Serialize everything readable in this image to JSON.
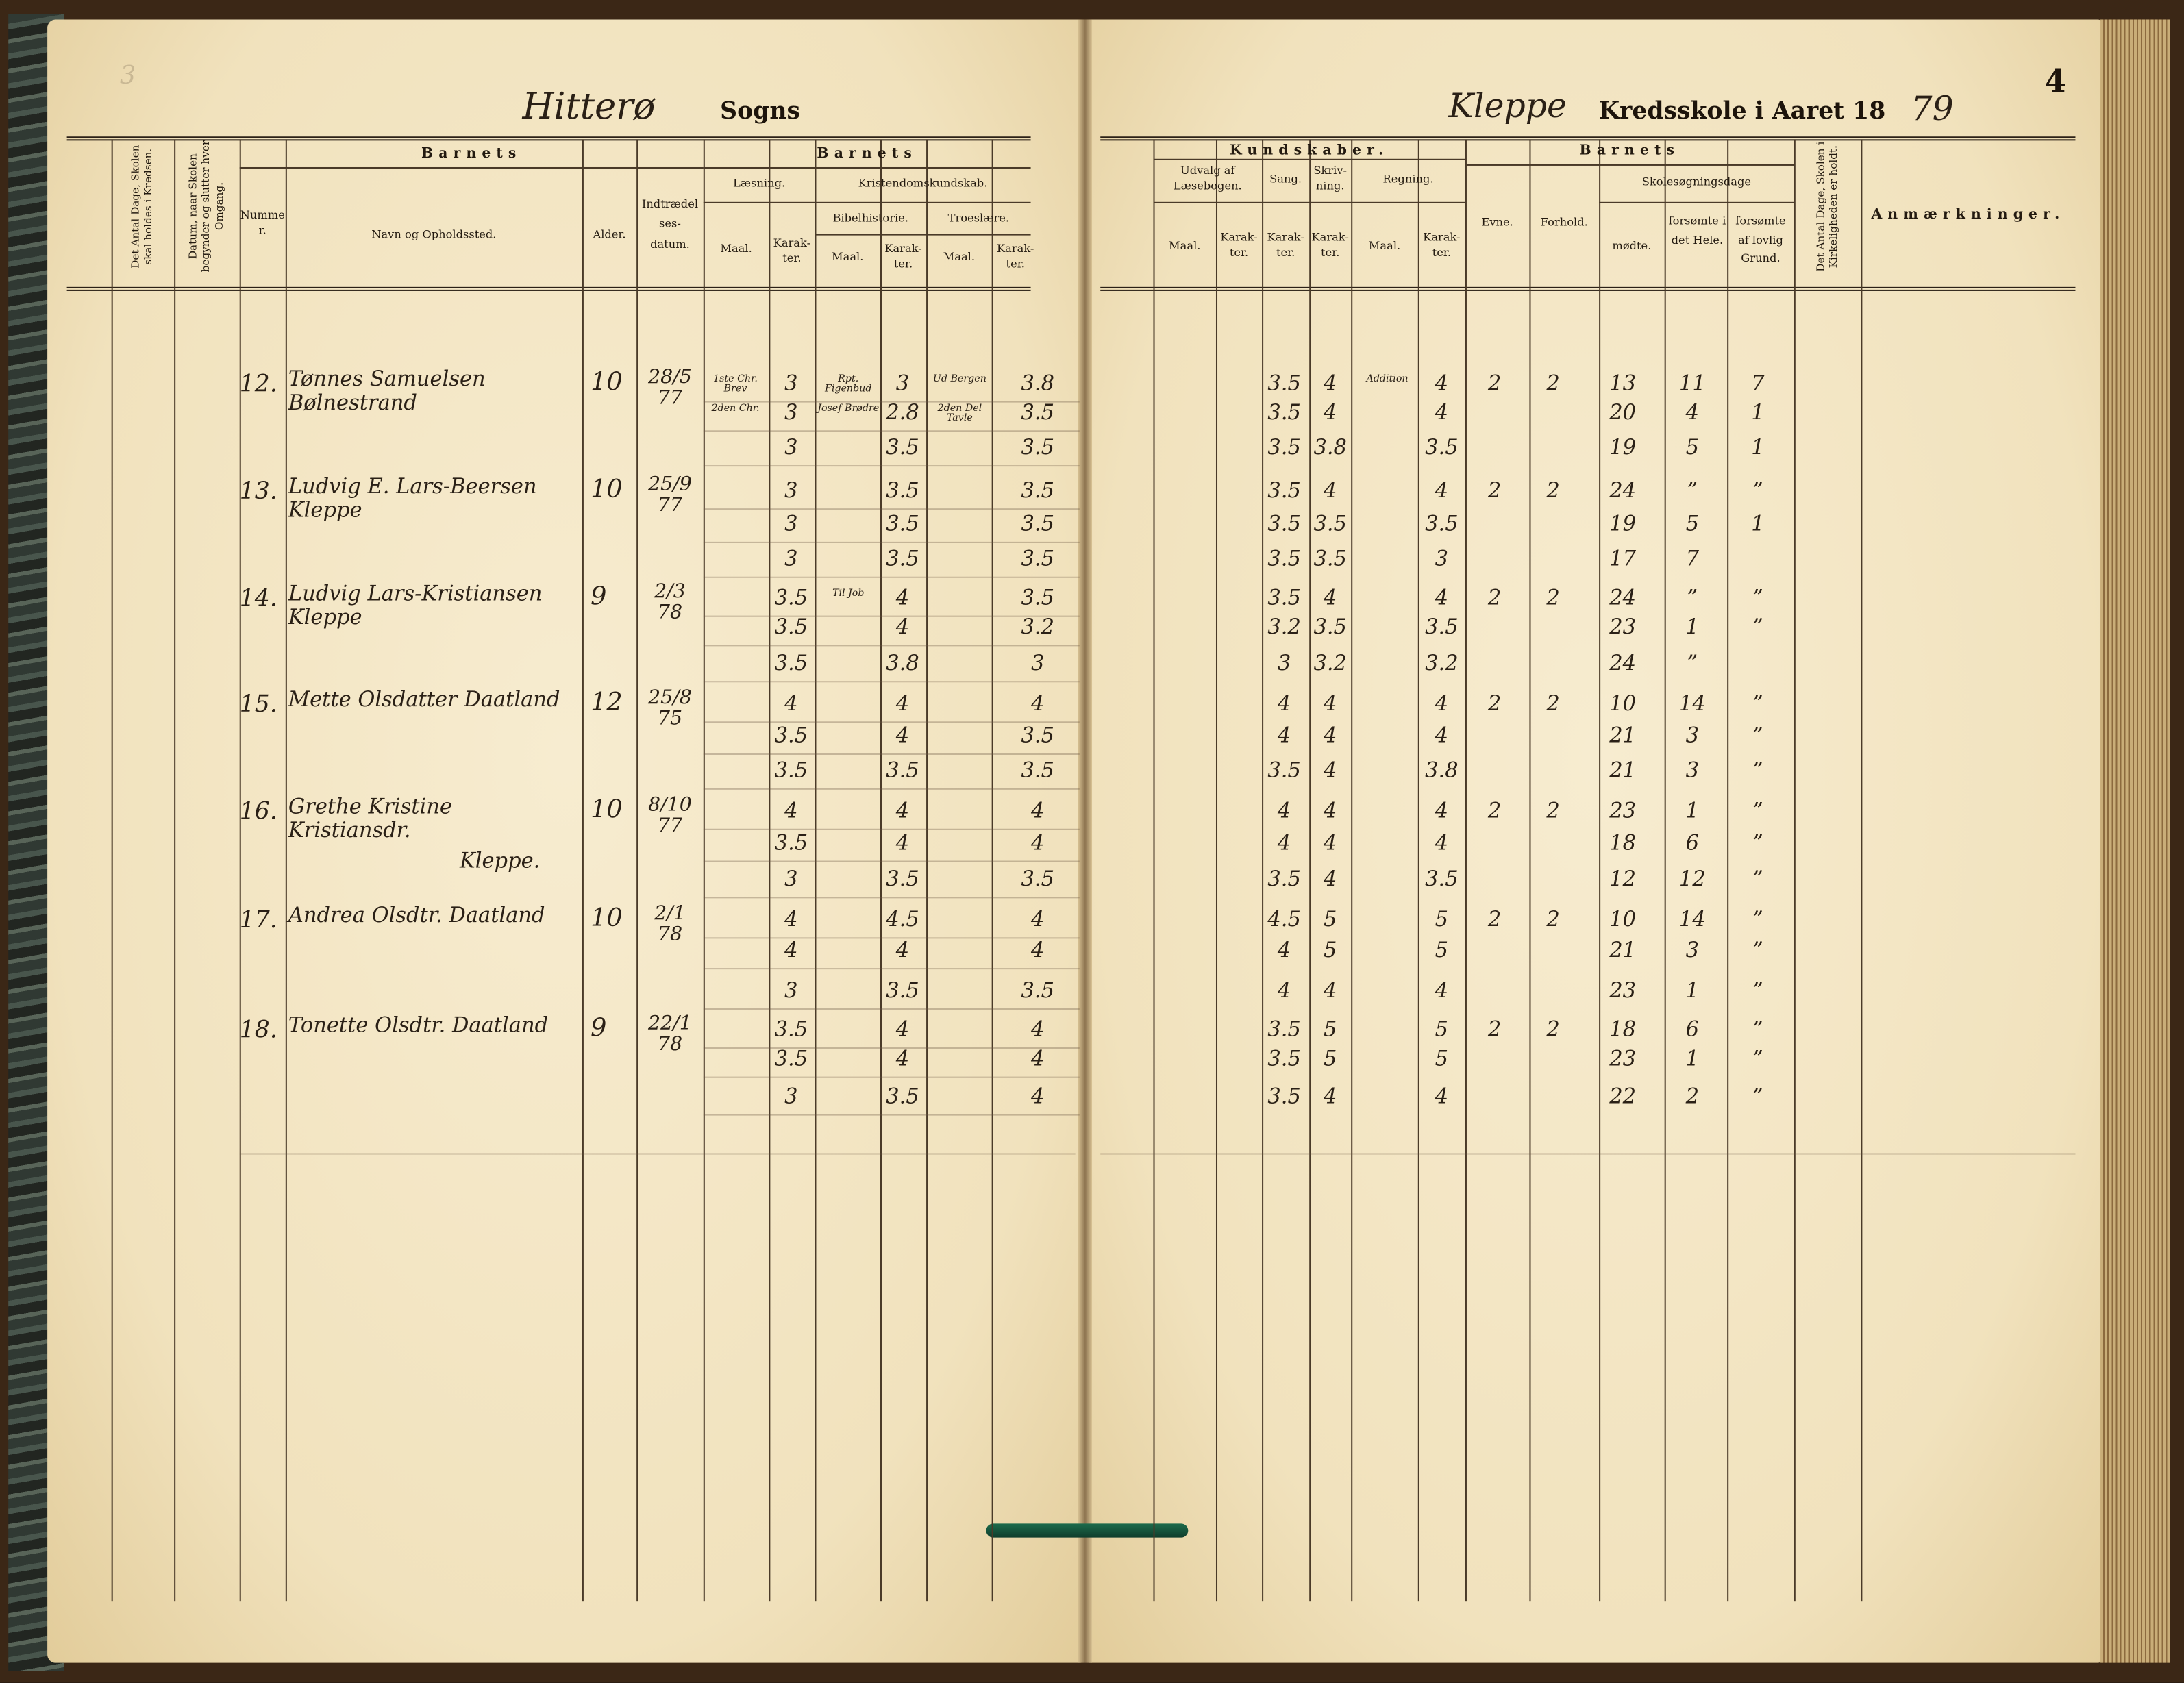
{
  "header_left": {
    "page_number": "3",
    "parish_handwritten": "Hitterø",
    "sogns": "Sogns",
    "col_days_school": "Det Antal Dage, Skolen skal holdes i Kredsen.",
    "col_date_term": "Datum, naar Skolen begynder og slutter hver Omgang.",
    "barnets_1": "Barnets",
    "nummer": "Nummer.",
    "navn": "Navn og Opholdssted.",
    "alder": "Alder.",
    "indtraedelse": "Indtrædelses-datum.",
    "barnets_2": "Barnets",
    "laesning": "Læsning.",
    "kristendom": "Kristendomskundskab.",
    "bibelhistorie": "Bibelhistorie.",
    "troeslaere": "Troeslære.",
    "maal": "Maal.",
    "karakter": "Karak-ter."
  },
  "header_right": {
    "page_number": "4",
    "school_handwritten": "Kleppe",
    "kredsskole": "Kredsskole i Aaret 18",
    "year_handwritten": "79",
    "kundskaber": "Kundskaber.",
    "udvalg": "Udvalg af Læsebogen.",
    "sang": "Sang.",
    "skrivning": "Skriv-ning.",
    "regning": "Regning.",
    "barnets": "Barnets",
    "evne": "Evne.",
    "forhold": "Forhold.",
    "skolesogning": "Skolesøgningsdage",
    "modte": "mødte.",
    "forsomte_hele": "forsømte i det Hele.",
    "forsomte_lovlig": "forsømte af lovlig Grund.",
    "col_church_days": "Det Antal Dage, Skolen i Kirkeligheden er holdt.",
    "anmaerkninger": "Anmærkninger.",
    "maal": "Maal.",
    "karakter": "Karak-ter."
  },
  "entries": [
    {
      "number": "12.",
      "name": "Tønnes Samuelsen Bølnestrand",
      "name2": "",
      "age": "10",
      "date": "28/5 77",
      "lines": [
        [
          "1ste Chr. Brev",
          "3",
          "Rpt. Figenbud",
          "3",
          "Ud Bergen",
          "3.8",
          "",
          "",
          "3.5",
          "4",
          "Addition",
          "4",
          "2",
          "2",
          "13",
          "11",
          "7"
        ],
        [
          "2den Chr.",
          "3",
          "Josef Brødre",
          "2.8",
          "2den Del Tavle",
          "3.5",
          "",
          "",
          "3.5",
          "4",
          "",
          "4",
          "",
          "",
          "20",
          "4",
          "1"
        ],
        [
          "",
          "3",
          "",
          "3.5",
          "",
          "3.5",
          "",
          "",
          "3.5",
          "3.8",
          "",
          "3.5",
          "",
          "",
          "19",
          "5",
          "1"
        ]
      ]
    },
    {
      "number": "13.",
      "name": "Ludvig E. Lars-Beersen Kleppe",
      "name2": "",
      "age": "10",
      "date": "25/9 77",
      "lines": [
        [
          "",
          "3",
          "",
          "3.5",
          "",
          "3.5",
          "",
          "",
          "3.5",
          "4",
          "",
          "4",
          "2",
          "2",
          "24",
          "”",
          "”"
        ],
        [
          "",
          "3",
          "",
          "3.5",
          "",
          "3.5",
          "",
          "",
          "3.5",
          "3.5",
          "",
          "3.5",
          "",
          "",
          "19",
          "5",
          "1"
        ],
        [
          "",
          "3",
          "",
          "3.5",
          "",
          "3.5",
          "",
          "",
          "3.5",
          "3.5",
          "",
          "3",
          "",
          "",
          "17",
          "7",
          ""
        ]
      ]
    },
    {
      "number": "14.",
      "name": "Ludvig Lars-Kristiansen Kleppe",
      "name2": "",
      "age": "9",
      "date": "2/3 78",
      "lines": [
        [
          "",
          "3.5",
          "Til Job",
          "4",
          "",
          "3.5",
          "",
          "",
          "3.5",
          "4",
          "",
          "4",
          "2",
          "2",
          "24",
          "”",
          "”"
        ],
        [
          "",
          "3.5",
          "",
          "4",
          "",
          "3.2",
          "",
          "",
          "3.2",
          "3.5",
          "",
          "3.5",
          "",
          "",
          "23",
          "1",
          "”"
        ],
        [
          "",
          "3.5",
          "",
          "3.8",
          "",
          "3",
          "",
          "",
          "3",
          "3.2",
          "",
          "3.2",
          "",
          "",
          "24",
          "”",
          ""
        ]
      ]
    },
    {
      "number": "15.",
      "name": "Mette Olsdatter Daatland",
      "name2": "",
      "age": "12",
      "date": "25/8 75",
      "lines": [
        [
          "",
          "4",
          "",
          "4",
          "",
          "4",
          "",
          "",
          "4",
          "4",
          "",
          "4",
          "2",
          "2",
          "10",
          "14",
          "”"
        ],
        [
          "",
          "3.5",
          "",
          "4",
          "",
          "3.5",
          "",
          "",
          "4",
          "4",
          "",
          "4",
          "",
          "",
          "21",
          "3",
          "”"
        ],
        [
          "",
          "3.5",
          "",
          "3.5",
          "",
          "3.5",
          "",
          "",
          "3.5",
          "4",
          "",
          "3.8",
          "",
          "",
          "21",
          "3",
          "”"
        ]
      ]
    },
    {
      "number": "16.",
      "name": "Grethe Kristine Kristiansdr.",
      "name2": "Kleppe.",
      "age": "10",
      "date": "8/10 77",
      "lines": [
        [
          "",
          "4",
          "",
          "4",
          "",
          "4",
          "",
          "",
          "4",
          "4",
          "",
          "4",
          "2",
          "2",
          "23",
          "1",
          "”"
        ],
        [
          "",
          "3.5",
          "",
          "4",
          "",
          "4",
          "",
          "",
          "4",
          "4",
          "",
          "4",
          "",
          "",
          "18",
          "6",
          "”"
        ],
        [
          "",
          "3",
          "",
          "3.5",
          "",
          "3.5",
          "",
          "",
          "3.5",
          "4",
          "",
          "3.5",
          "",
          "",
          "12",
          "12",
          "”"
        ]
      ]
    },
    {
      "number": "17.",
      "name": "Andrea Olsdtr. Daatland",
      "name2": "",
      "age": "10",
      "date": "2/1 78",
      "lines": [
        [
          "",
          "4",
          "",
          "4.5",
          "",
          "4",
          "",
          "",
          "4.5",
          "5",
          "",
          "5",
          "2",
          "2",
          "10",
          "14",
          "”"
        ],
        [
          "",
          "4",
          "",
          "4",
          "",
          "4",
          "",
          "",
          "4",
          "5",
          "",
          "5",
          "",
          "",
          "21",
          "3",
          "”"
        ],
        [
          "",
          "3",
          "",
          "3.5",
          "",
          "3.5",
          "",
          "",
          "4",
          "4",
          "",
          "4",
          "",
          "",
          "23",
          "1",
          "”"
        ]
      ]
    },
    {
      "number": "18.",
      "name": "Tonette Olsdtr. Daatland",
      "name2": "",
      "age": "9",
      "date": "22/1 78",
      "lines": [
        [
          "",
          "3.5",
          "",
          "4",
          "",
          "4",
          "",
          "",
          "3.5",
          "5",
          "",
          "5",
          "2",
          "2",
          "18",
          "6",
          "”"
        ],
        [
          "",
          "3.5",
          "",
          "4",
          "",
          "4",
          "",
          "",
          "3.5",
          "5",
          "",
          "5",
          "",
          "",
          "23",
          "1",
          "”"
        ],
        [
          "",
          "3",
          "",
          "3.5",
          "",
          "4",
          "",
          "",
          "3.5",
          "4",
          "",
          "4",
          "",
          "",
          "22",
          "2",
          "”"
        ]
      ]
    }
  ],
  "colors": {
    "paper": "#f3e6c4",
    "ink": "#2a2016",
    "binding": "#3b2716",
    "thread": "#1d6b4c"
  }
}
